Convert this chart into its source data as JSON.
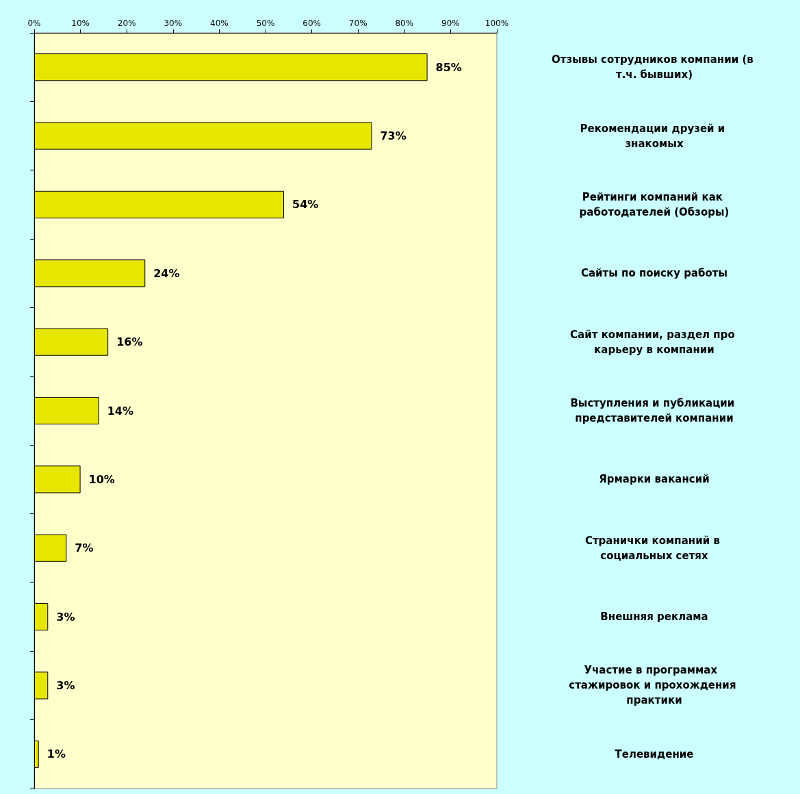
{
  "chart_data": {
    "type": "bar",
    "orientation": "horizontal",
    "categories": [
      "Отзывы сотрудников компании (в т.ч. бывших)",
      "Рекомендации друзей и знакомых",
      "Рейтинги компаний как работодателей (Обзоры)",
      "Сайты по поиску работы",
      "Сайт компании, раздел про карьеру в компании",
      "Выступления и публикации представителей компании",
      "Ярмарки вакансий",
      "Странички компаний в социальных сетях",
      "Внешняя реклама",
      "Участие в программах  стажировок и прохождения практики",
      "Телевидение"
    ],
    "values": [
      85,
      73,
      54,
      24,
      16,
      14,
      10,
      7,
      3,
      3,
      1
    ],
    "value_labels": [
      "85%",
      "73%",
      "54%",
      "24%",
      "16%",
      "14%",
      "10%",
      "7%",
      "3%",
      "3%",
      "1%"
    ],
    "color": "#e6e600",
    "xlim": [
      0,
      100
    ],
    "xticks": [
      {
        "value": 0,
        "label": "0%"
      },
      {
        "value": 10,
        "label": "10%"
      },
      {
        "value": 20,
        "label": "20%"
      },
      {
        "value": 30,
        "label": "30%"
      },
      {
        "value": 40,
        "label": "40%"
      },
      {
        "value": 50,
        "label": "50%"
      },
      {
        "value": 60,
        "label": "60%"
      },
      {
        "value": 70,
        "label": "70%"
      },
      {
        "value": 80,
        "label": "80%"
      },
      {
        "value": 90,
        "label": "90%"
      },
      {
        "value": 100,
        "label": "100%"
      }
    ],
    "grid": false
  }
}
